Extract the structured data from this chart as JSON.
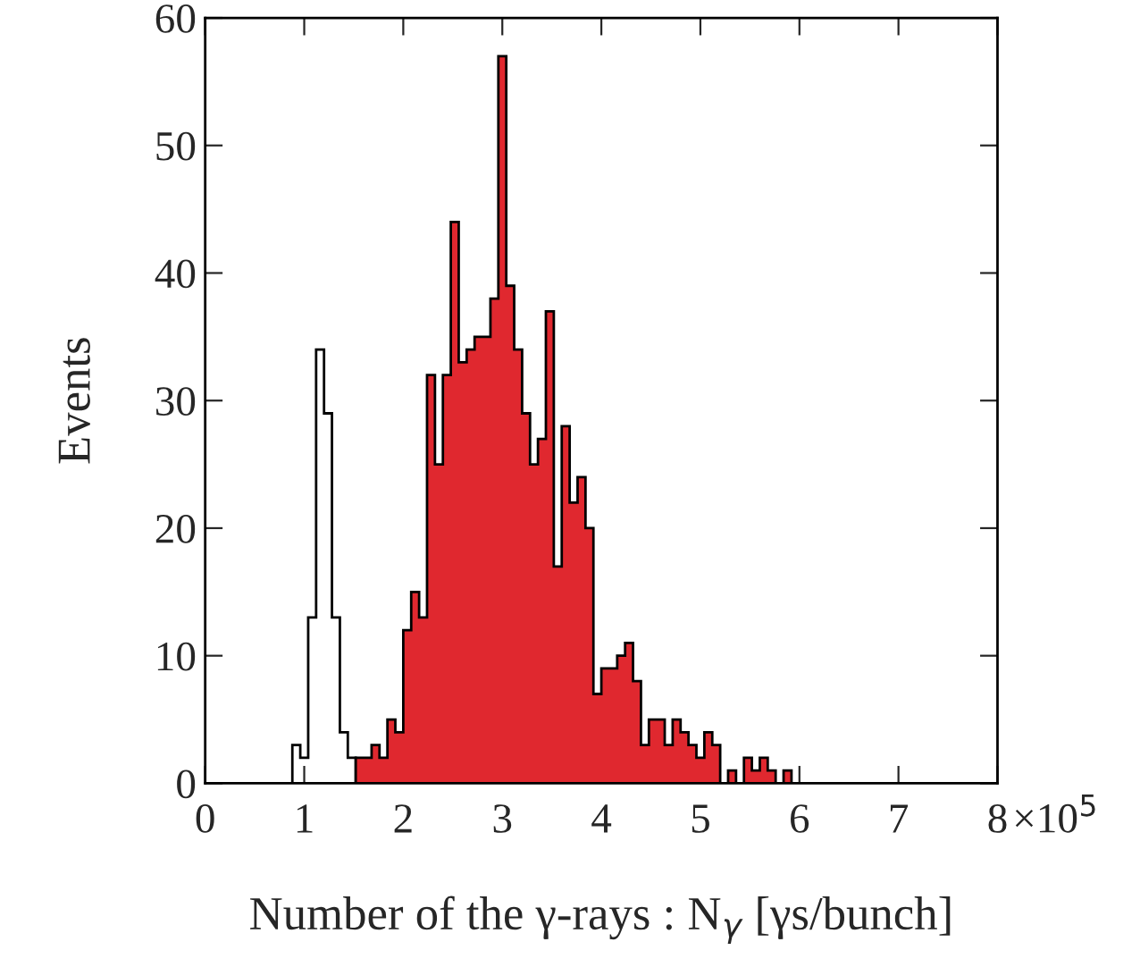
{
  "chart_data": {
    "type": "histogram",
    "xlabel": "Number of the γ-rays : N$_{γ}$ [γs/bunch]",
    "ylabel": "Events",
    "bins": [
      0.88,
      0.96,
      1.04,
      1.12,
      1.2,
      1.28,
      1.36,
      1.44,
      1.52,
      1.6,
      1.68,
      1.76,
      1.84,
      1.92,
      2.0,
      2.08,
      2.16,
      2.24,
      2.32,
      2.4,
      2.48,
      2.56,
      2.64,
      2.72,
      2.8,
      2.88,
      2.96,
      3.04,
      3.12,
      3.2,
      3.28,
      3.36,
      3.44,
      3.52,
      3.6,
      3.68,
      3.76,
      3.84,
      3.92,
      4.0,
      4.08,
      4.16,
      4.24,
      4.32,
      4.4,
      4.48,
      4.56,
      4.64,
      4.72,
      4.8,
      4.88,
      4.96,
      5.04,
      5.12,
      5.2,
      5.28,
      5.36,
      5.44,
      5.52,
      5.6,
      5.68,
      5.76,
      5.84,
      5.92
    ],
    "series": [
      {
        "color": "#000000",
        "values": [
          3,
          2,
          13,
          34,
          29,
          13,
          4,
          2,
          0,
          0,
          0,
          0,
          0,
          0,
          0,
          0,
          0,
          0,
          0,
          0,
          0,
          0,
          0,
          0,
          0,
          0,
          0,
          0,
          0,
          0,
          0,
          0,
          0,
          0,
          0,
          0,
          0,
          0,
          0,
          0,
          0,
          0,
          0,
          0,
          0,
          0,
          0,
          0,
          0,
          0,
          0,
          0,
          0,
          0,
          0,
          0,
          0,
          0,
          0,
          0,
          0,
          0,
          0
        ]
      },
      {
        "color": "#e0282f",
        "values": [
          0,
          0,
          0,
          0,
          0,
          0,
          0,
          0,
          2,
          2,
          3,
          2,
          5,
          4,
          12,
          15,
          13,
          32,
          25,
          32,
          44,
          33,
          34,
          35,
          35,
          38,
          57,
          39,
          34,
          29,
          25,
          27,
          37,
          17,
          28,
          22,
          24,
          20,
          7,
          9,
          9,
          10,
          11,
          8,
          3,
          5,
          5,
          3,
          5,
          4,
          3,
          2,
          4,
          3,
          0,
          1,
          0,
          2,
          1,
          2,
          1,
          0,
          1
        ]
      }
    ],
    "xlim": [
      0,
      8
    ],
    "ylim": [
      0,
      60
    ],
    "xticks": [
      0,
      1,
      2,
      3,
      4,
      5,
      6,
      7,
      8
    ],
    "annotations": [
      "×10$^{5}$"
    ],
    "yticks": [
      0,
      10,
      20,
      30,
      40,
      50,
      60
    ],
    "grid": false,
    "legend": false
  }
}
